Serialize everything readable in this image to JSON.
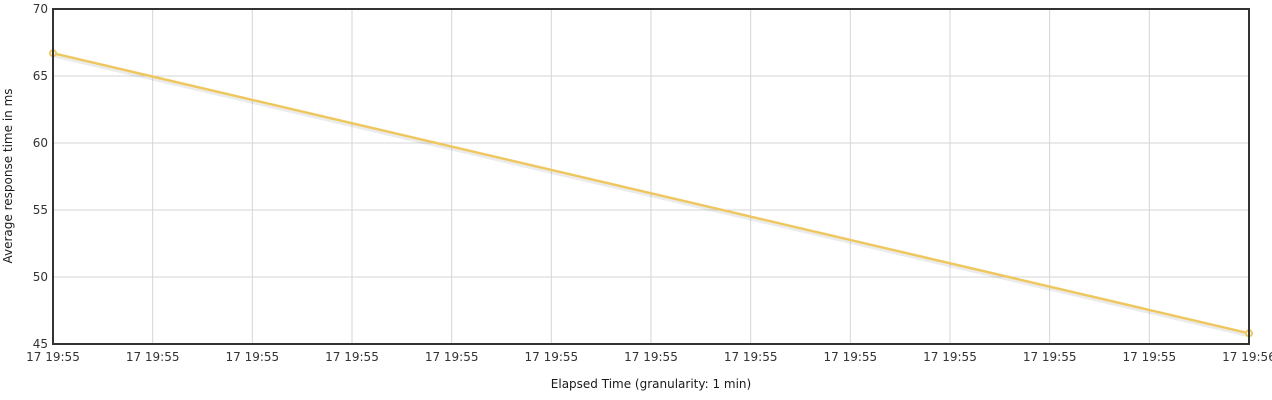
{
  "chart_data": {
    "type": "line",
    "title": "",
    "xlabel": "Elapsed Time (granularity: 1 min)",
    "ylabel": "Average response time in ms",
    "ylim": [
      45,
      70
    ],
    "yticks": [
      45,
      50,
      55,
      60,
      65,
      70
    ],
    "xticks": [
      "17 19:55",
      "17 19:55",
      "17 19:55",
      "17 19:55",
      "17 19:55",
      "17 19:55",
      "17 19:55",
      "17 19:55",
      "17 19:55",
      "17 19:55",
      "17 19:55",
      "17 19:55",
      "17 19:56"
    ],
    "grid": true,
    "legend": "none",
    "series": [
      {
        "color": "#eec75f",
        "x": [
          "17 19:55",
          "17 19:56"
        ],
        "y": [
          66.7,
          45.8
        ]
      }
    ]
  }
}
